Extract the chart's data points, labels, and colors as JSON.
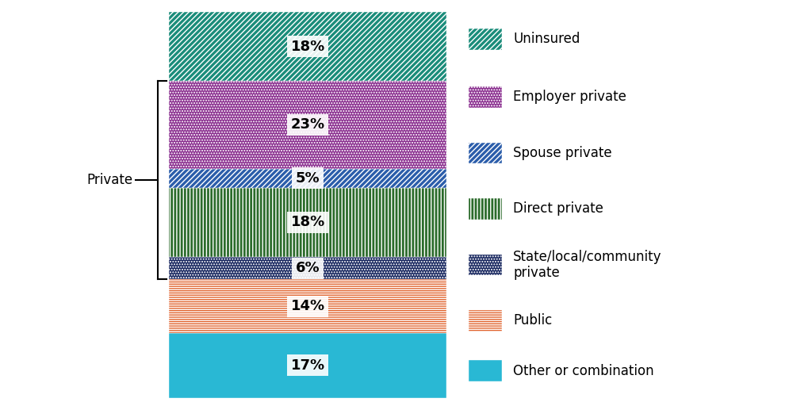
{
  "segments": [
    {
      "label": "Other or combination",
      "value": 17,
      "color": "#29B8D4",
      "hatch": ""
    },
    {
      "label": "Public",
      "value": 14,
      "color": "#E0622B",
      "hatch": "---"
    },
    {
      "label": "State/local/community private",
      "value": 6,
      "color": "#192860",
      "hatch": ".."
    },
    {
      "label": "Direct private",
      "value": 18,
      "color": "#2B6B2B",
      "hatch": "|||"
    },
    {
      "label": "Spouse private",
      "value": 5,
      "color": "#2B5DAA",
      "hatch": "///"
    },
    {
      "label": "Employer private",
      "value": 23,
      "color": "#8B3090",
      "hatch": ".."
    },
    {
      "label": "Uninsured",
      "value": 18,
      "color": "#1A8C7A",
      "hatch": "///"
    }
  ],
  "legend_entries": [
    {
      "label": "Uninsured",
      "color": "#1A8C7A",
      "hatch": "///"
    },
    {
      "label": "Employer private",
      "color": "#8B3090",
      "hatch": ".."
    },
    {
      "label": "Spouse private",
      "color": "#2B5DAA",
      "hatch": "///"
    },
    {
      "label": "Direct private",
      "color": "#2B6B2B",
      "hatch": "|||"
    },
    {
      "label": "State/local/community\nprivate",
      "color": "#192860",
      "hatch": ".."
    },
    {
      "label": "Public",
      "color": "#E0622B",
      "hatch": "---"
    },
    {
      "label": "Other or combination",
      "color": "#29B8D4",
      "hatch": ""
    }
  ],
  "private_indices": [
    2,
    3,
    4,
    5
  ],
  "background_color": "#ffffff",
  "text_fontsize": 13,
  "label_fontsize": 12,
  "legend_fontsize": 12
}
